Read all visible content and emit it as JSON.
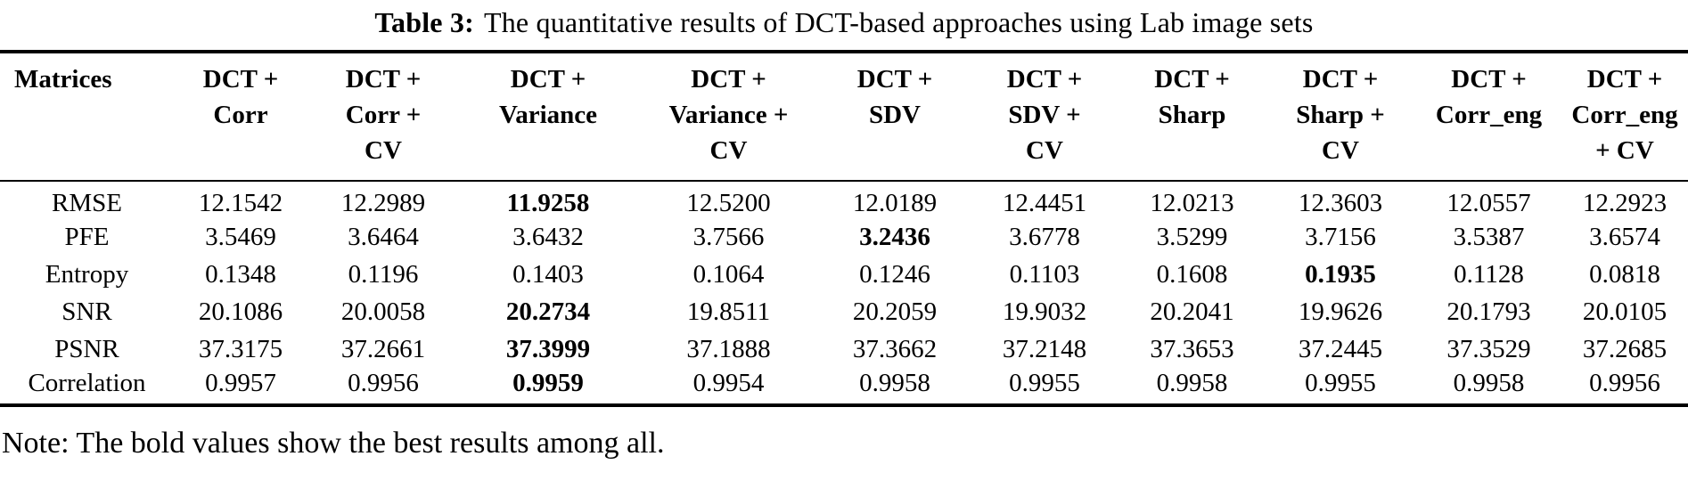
{
  "caption": {
    "label": "Table 3:",
    "text": "The quantitative results of DCT-based approaches using Lab image sets"
  },
  "table": {
    "row_header": "Matrices",
    "columns": [
      {
        "label": "DCT + Corr",
        "lines": [
          "DCT +",
          "Corr"
        ]
      },
      {
        "label": "DCT + Corr + CV",
        "lines": [
          "DCT +",
          "Corr +",
          "CV"
        ]
      },
      {
        "label": "DCT + Variance",
        "lines": [
          "DCT +",
          "Variance"
        ]
      },
      {
        "label": "DCT + Variance + CV",
        "lines": [
          "DCT +",
          "Variance +",
          "CV"
        ]
      },
      {
        "label": "DCT + SDV",
        "lines": [
          "DCT +",
          "SDV"
        ]
      },
      {
        "label": "DCT + SDV + CV",
        "lines": [
          "DCT +",
          "SDV +",
          "CV"
        ]
      },
      {
        "label": "DCT + Sharp",
        "lines": [
          "DCT +",
          "Sharp"
        ]
      },
      {
        "label": "DCT + Sharp + CV",
        "lines": [
          "DCT +",
          "Sharp +",
          "CV"
        ]
      },
      {
        "label": "DCT + Corr_eng",
        "lines": [
          "DCT +",
          "Corr_eng"
        ]
      },
      {
        "label": "DCT + Corr_eng + CV",
        "lines": [
          "DCT +",
          "Corr_eng",
          "+ CV"
        ]
      }
    ],
    "rows": [
      {
        "metric": "RMSE",
        "values": [
          "12.1542",
          "12.2989",
          "11.9258",
          "12.5200",
          "12.0189",
          "12.4451",
          "12.0213",
          "12.3603",
          "12.0557",
          "12.2923"
        ],
        "bold_index": 2
      },
      {
        "metric": "PFE",
        "values": [
          "3.5469",
          "3.6464",
          "3.6432",
          "3.7566",
          "3.2436",
          "3.6778",
          "3.5299",
          "3.7156",
          "3.5387",
          "3.6574"
        ],
        "bold_index": 4
      },
      {
        "metric": "Entropy",
        "values": [
          "0.1348",
          "0.1196",
          "0.1403",
          "0.1064",
          "0.1246",
          "0.1103",
          "0.1608",
          "0.1935",
          "0.1128",
          "0.0818"
        ],
        "bold_index": 7
      },
      {
        "metric": "SNR",
        "values": [
          "20.1086",
          "20.0058",
          "20.2734",
          "19.8511",
          "20.2059",
          "19.9032",
          "20.2041",
          "19.9626",
          "20.1793",
          "20.0105"
        ],
        "bold_index": 2
      },
      {
        "metric": "PSNR",
        "values": [
          "37.3175",
          "37.2661",
          "37.3999",
          "37.1888",
          "37.3662",
          "37.2148",
          "37.3653",
          "37.2445",
          "37.3529",
          "37.2685"
        ],
        "bold_index": 2
      },
      {
        "metric": "Correlation",
        "values": [
          "0.9957",
          "0.9956",
          "0.9959",
          "0.9954",
          "0.9958",
          "0.9955",
          "0.9958",
          "0.9955",
          "0.9958",
          "0.9956"
        ],
        "bold_index": 2
      }
    ]
  },
  "note": "Note: The bold values show the best results among all.",
  "colors": {
    "text": "#000000",
    "background": "#ffffff",
    "rule": "#000000"
  }
}
